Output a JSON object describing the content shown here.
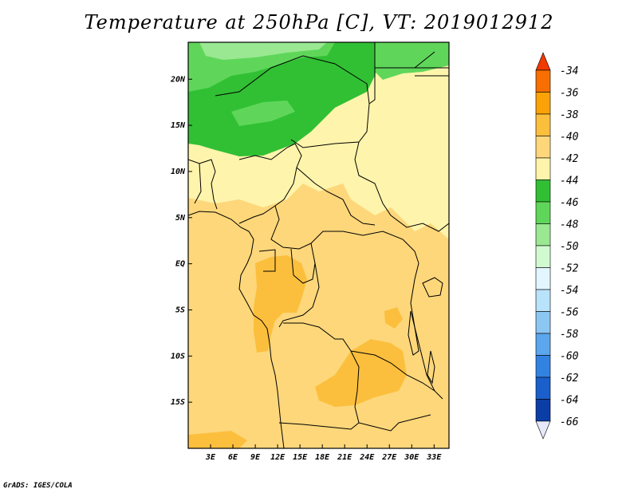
{
  "title": "Temperature at 250hPa [C], VT: 2019012912",
  "credit": "GrADS: IGES/COLA",
  "map": {
    "lon_range": [
      0,
      35
    ],
    "lat_range": [
      -20,
      24
    ],
    "lon_ticks": [
      {
        "value": 3,
        "label": "3E"
      },
      {
        "value": 6,
        "label": "6E"
      },
      {
        "value": 9,
        "label": "9E"
      },
      {
        "value": 12,
        "label": "12E"
      },
      {
        "value": 15,
        "label": "15E"
      },
      {
        "value": 18,
        "label": "18E"
      },
      {
        "value": 21,
        "label": "21E"
      },
      {
        "value": 24,
        "label": "24E"
      },
      {
        "value": 27,
        "label": "27E"
      },
      {
        "value": 30,
        "label": "30E"
      },
      {
        "value": 33,
        "label": "33E"
      }
    ],
    "lat_ticks": [
      {
        "value": 20,
        "label": "20N"
      },
      {
        "value": 15,
        "label": "15N"
      },
      {
        "value": 10,
        "label": "10N"
      },
      {
        "value": 5,
        "label": "5N"
      },
      {
        "value": 0,
        "label": "EQ"
      },
      {
        "value": -5,
        "label": "5S"
      },
      {
        "value": -10,
        "label": "10S"
      },
      {
        "value": -15,
        "label": "15S"
      }
    ]
  },
  "colorbar": {
    "labels": [
      "-34",
      "-36",
      "-38",
      "-40",
      "-42",
      "-44",
      "-46",
      "-48",
      "-50",
      "-52",
      "-54",
      "-56",
      "-58",
      "-60",
      "-62",
      "-64",
      "-66"
    ],
    "colors": [
      "#f03a00",
      "#f76f00",
      "#fba208",
      "#fcbf3d",
      "#fdd77a",
      "#fef4ab",
      "#31c034",
      "#5fd65a",
      "#9ae891",
      "#d2fad0",
      "#e3f6ff",
      "#b9e2fb",
      "#8cc6f2",
      "#5ba6ec",
      "#3282e2",
      "#1a5fcc",
      "#0a3da6",
      "#0a1570"
    ]
  },
  "colors": {
    "colder": "#fef4ab",
    "mid": "#fdd77a",
    "warm": "#fcbf3d",
    "green": "#31c034",
    "light_green": "#5fd65a",
    "pale_green": "#9ae891"
  }
}
